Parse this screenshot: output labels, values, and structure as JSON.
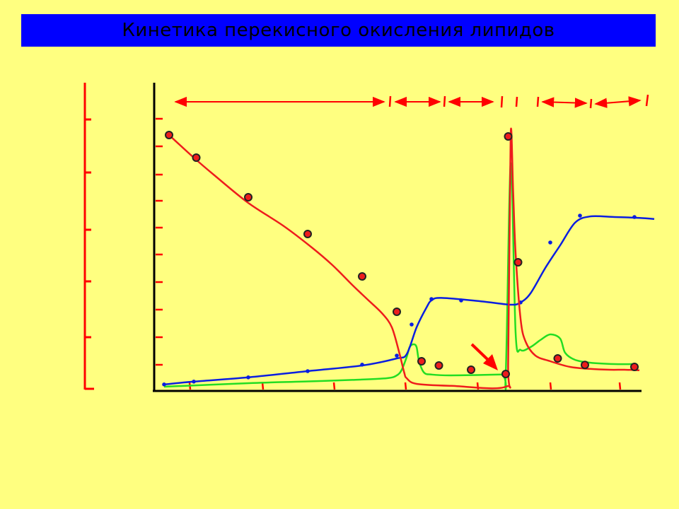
{
  "title": "Кинетика перекисного окисления липидов",
  "colors": {
    "background": "#ffff80",
    "title_bar": "#0000ff",
    "axis": "#000000",
    "ticks": "#ff0000",
    "red_series": "#ee1c1c",
    "blue_series": "#0a1ee0",
    "green_series": "#22dd22",
    "arrows": "#ff0000"
  },
  "chart_data": {
    "type": "line",
    "title": "",
    "xlabel": "",
    "ylabel": "",
    "xlim": [
      0,
      100
    ],
    "ylim": [
      0,
      100
    ],
    "grid": false,
    "legend": "none",
    "series": [
      {
        "color": "red",
        "markers": "circle",
        "line": [
          [
            3,
            90
          ],
          [
            8,
            82
          ],
          [
            12,
            76
          ],
          [
            19,
            66
          ],
          [
            26,
            58
          ],
          [
            32,
            50
          ],
          [
            36,
            44
          ],
          [
            40,
            37
          ],
          [
            43,
            32
          ],
          [
            46,
            27
          ],
          [
            48,
            22
          ],
          [
            49.5,
            13
          ],
          [
            50.5,
            6
          ],
          [
            51,
            4
          ],
          [
            53,
            2
          ],
          [
            60,
            1.3
          ],
          [
            71,
            1
          ],
          [
            71.5,
            10
          ],
          [
            72,
            90
          ],
          [
            72.5,
            70
          ],
          [
            73,
            48
          ],
          [
            74,
            25
          ],
          [
            75,
            17
          ],
          [
            77,
            12
          ],
          [
            80,
            10
          ],
          [
            84,
            8
          ],
          [
            88,
            7.3
          ],
          [
            92,
            7
          ],
          [
            95,
            7
          ],
          [
            98,
            6.8
          ]
        ],
        "points": [
          [
            3,
            90
          ],
          [
            8.5,
            82
          ],
          [
            19,
            68
          ],
          [
            31,
            55
          ],
          [
            42,
            40
          ],
          [
            49,
            27.5
          ],
          [
            54,
            10
          ],
          [
            57.5,
            8.5
          ],
          [
            64,
            7
          ],
          [
            71,
            5.5
          ],
          [
            71.5,
            89.5
          ],
          [
            73.5,
            45
          ],
          [
            81.5,
            11
          ],
          [
            87,
            8.7
          ],
          [
            97,
            8
          ]
        ]
      },
      {
        "color": "blue",
        "markers": "dot",
        "line": [
          [
            2,
            1.8
          ],
          [
            8,
            2.8
          ],
          [
            19,
            4.3
          ],
          [
            31,
            6.5
          ],
          [
            42,
            8.5
          ],
          [
            49,
            11
          ],
          [
            51,
            12.5
          ],
          [
            53,
            22
          ],
          [
            55,
            29
          ],
          [
            56,
            31.5
          ],
          [
            58,
            32.4
          ],
          [
            66,
            31.2
          ],
          [
            72,
            30
          ],
          [
            74,
            30.8
          ],
          [
            76,
            34
          ],
          [
            79,
            43
          ],
          [
            82,
            51
          ],
          [
            85,
            59
          ],
          [
            88,
            61.2
          ],
          [
            93,
            61
          ],
          [
            98,
            60.7
          ],
          [
            101,
            60.3
          ]
        ],
        "points": [
          [
            2,
            1.8
          ],
          [
            8,
            2.8
          ],
          [
            19,
            4.3
          ],
          [
            31,
            6.5
          ],
          [
            42,
            8.8
          ],
          [
            49,
            12
          ],
          [
            52,
            23
          ],
          [
            56,
            32
          ],
          [
            62,
            31.5
          ],
          [
            74,
            30.8
          ],
          [
            80,
            52
          ],
          [
            86,
            61.5
          ],
          [
            97,
            61
          ]
        ]
      },
      {
        "color": "green",
        "line": [
          [
            2,
            1
          ],
          [
            20,
            2.3
          ],
          [
            30,
            2.8
          ],
          [
            40,
            3.4
          ],
          [
            47,
            4
          ],
          [
            49,
            5
          ],
          [
            50,
            7
          ],
          [
            51,
            11.5
          ],
          [
            51.6,
            15
          ],
          [
            52.4,
            16
          ],
          [
            53,
            15
          ],
          [
            53.5,
            10
          ],
          [
            54.5,
            6
          ],
          [
            56,
            5.3
          ],
          [
            60,
            5
          ],
          [
            70,
            5.3
          ],
          [
            71,
            5.5
          ],
          [
            72,
            80
          ],
          [
            73,
            20
          ],
          [
            74,
            14
          ],
          [
            76,
            15
          ],
          [
            78,
            17.5
          ],
          [
            80,
            19.5
          ],
          [
            82,
            18
          ],
          [
            83,
            13
          ],
          [
            85,
            10.5
          ],
          [
            88,
            9.5
          ],
          [
            93,
            9
          ],
          [
            97,
            9
          ]
        ]
      }
    ],
    "range_arrows": 6,
    "marker_arrow": "down-right"
  }
}
